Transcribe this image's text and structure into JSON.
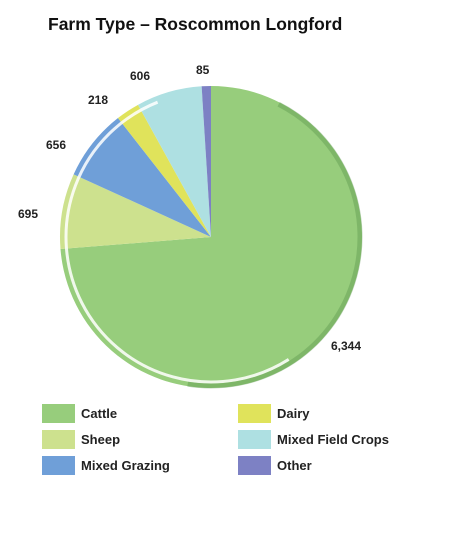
{
  "chart_data": {
    "type": "pie",
    "title": "Farm Type – Roscommon Longford",
    "categories": [
      "Cattle",
      "Sheep",
      "Mixed Grazing",
      "Dairy",
      "Mixed Field Crops",
      "Other"
    ],
    "values": [
      6344,
      695,
      656,
      218,
      606,
      85
    ],
    "value_labels": [
      "6,344",
      "695",
      "656",
      "218",
      "606",
      "85"
    ],
    "colors": [
      "#97cd7c",
      "#cde18e",
      "#6f9fd8",
      "#e0e35b",
      "#aee0e2",
      "#7d81c4"
    ],
    "legend_position": "bottom"
  }
}
